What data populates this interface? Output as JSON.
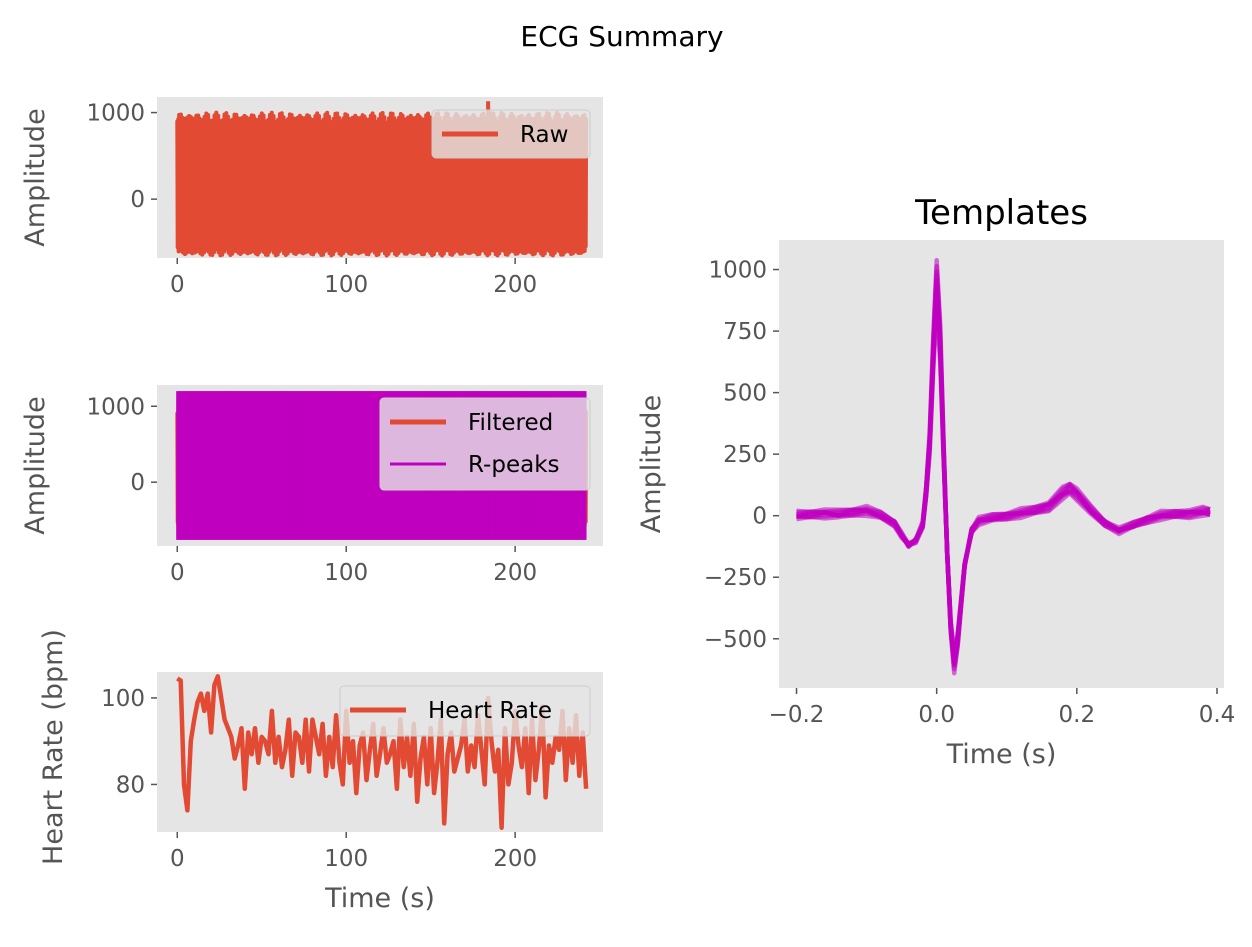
{
  "figure": {
    "suptitle": "ECG Summary"
  },
  "colors": {
    "raw": "#E24A33",
    "filtered": "#E24A33",
    "rpeaks": "#BF00BF",
    "heart_rate": "#E24A33",
    "templates": "#BF00BF",
    "axes_bg": "#E5E5E5"
  },
  "chart_data": [
    {
      "id": "raw",
      "type": "line",
      "title": "",
      "xlabel": "",
      "ylabel": "Amplitude",
      "xlim": [
        -12,
        252
      ],
      "ylim": [
        -680,
        1180
      ],
      "xticks": [
        0,
        100,
        200
      ],
      "yticks": [
        0,
        1000
      ],
      "grid": false,
      "legend_position": "top-right",
      "series": [
        {
          "name": "Raw",
          "kind": "oscillation",
          "x_range": [
            0,
            242
          ],
          "low": -620,
          "high": 980,
          "peak": {
            "x": 184,
            "y": 1130
          }
        }
      ]
    },
    {
      "id": "filtered",
      "type": "line",
      "title": "",
      "xlabel": "",
      "ylabel": "Amplitude",
      "xlim": [
        -12,
        252
      ],
      "ylim": [
        -840,
        1280
      ],
      "xticks": [
        0,
        100,
        200
      ],
      "yticks": [
        0,
        1000
      ],
      "grid": false,
      "legend_position": "top-right",
      "series": [
        {
          "name": "Filtered",
          "kind": "oscillation",
          "x_range": [
            0,
            242
          ],
          "low": -590,
          "high": 990
        },
        {
          "name": "R-peaks",
          "kind": "vlines",
          "x_range": [
            0,
            242
          ],
          "ymin": -760,
          "ymax": 1200
        }
      ]
    },
    {
      "id": "heart_rate",
      "type": "line",
      "title": "",
      "xlabel": "Time (s)",
      "ylabel": "Heart Rate (bpm)",
      "xlim": [
        -12,
        252
      ],
      "ylim": [
        69,
        106
      ],
      "xticks": [
        0,
        100,
        200
      ],
      "yticks": [
        80,
        100
      ],
      "grid": false,
      "legend_position": "top-right",
      "series": [
        {
          "name": "Heart Rate",
          "x": [
            0,
            2,
            4,
            6,
            8,
            10,
            12,
            14,
            16,
            18,
            20,
            22,
            24,
            26,
            28,
            30,
            32,
            34,
            36,
            38,
            40,
            42,
            44,
            46,
            48,
            50,
            52,
            54,
            56,
            58,
            60,
            62,
            64,
            66,
            68,
            70,
            72,
            74,
            76,
            78,
            80,
            82,
            84,
            86,
            88,
            90,
            92,
            94,
            96,
            98,
            100,
            102,
            104,
            106,
            108,
            110,
            112,
            114,
            116,
            118,
            120,
            122,
            124,
            126,
            128,
            130,
            132,
            134,
            136,
            138,
            140,
            142,
            144,
            146,
            148,
            150,
            152,
            154,
            156,
            158,
            160,
            162,
            164,
            166,
            168,
            170,
            172,
            174,
            176,
            178,
            180,
            182,
            184,
            186,
            188,
            190,
            192,
            194,
            196,
            198,
            200,
            202,
            204,
            206,
            208,
            210,
            212,
            214,
            216,
            218,
            220,
            222,
            224,
            226,
            228,
            230,
            232,
            234,
            236,
            238,
            240,
            242
          ],
          "y": [
            104.5,
            104,
            80,
            74,
            90,
            95,
            99,
            101,
            97,
            101,
            92,
            103,
            105,
            100,
            95,
            93,
            91,
            86,
            89,
            93,
            79,
            92,
            87,
            93,
            85,
            91,
            90,
            87,
            97,
            85,
            91,
            84,
            88,
            95,
            82,
            92,
            91,
            85,
            95,
            83,
            95,
            91,
            87,
            94,
            82,
            91,
            84,
            96,
            85,
            80,
            97,
            85,
            90,
            78,
            89,
            92,
            81,
            88,
            94,
            82,
            87,
            93,
            85,
            87,
            90,
            79,
            95,
            84,
            91,
            82,
            94,
            76,
            86,
            91,
            80,
            93,
            78,
            85,
            95,
            71,
            87,
            92,
            83,
            86,
            89,
            95,
            83,
            89,
            84,
            96,
            88,
            80,
            100,
            90,
            83,
            88,
            70,
            93,
            80,
            85,
            97,
            89,
            84,
            93,
            78,
            95,
            81,
            88,
            98,
            77,
            89,
            85,
            91,
            88,
            97,
            81,
            93,
            85,
            96,
            82,
            92,
            79
          ]
        }
      ]
    },
    {
      "id": "templates",
      "type": "line",
      "title": "Templates",
      "xlabel": "Time (s)",
      "ylabel": "Amplitude",
      "xlim": [
        -0.225,
        0.41
      ],
      "ylim": [
        -700,
        1120
      ],
      "xticks": [
        -0.2,
        0.0,
        0.2,
        0.4
      ],
      "xtick_labels": [
        "−0.2",
        "0.0",
        "0.2",
        "0.4"
      ],
      "yticks": [
        -500,
        -250,
        0,
        250,
        500,
        750,
        1000
      ],
      "ytick_labels": [
        "−500",
        "−250",
        "0",
        "250",
        "500",
        "750",
        "1000"
      ],
      "grid": false,
      "series": [
        {
          "name": "",
          "x": [
            -0.2,
            -0.18,
            -0.16,
            -0.14,
            -0.12,
            -0.1,
            -0.08,
            -0.06,
            -0.05,
            -0.04,
            -0.03,
            -0.02,
            -0.015,
            -0.01,
            -0.005,
            0.0,
            0.005,
            0.01,
            0.015,
            0.02,
            0.025,
            0.03,
            0.04,
            0.05,
            0.06,
            0.08,
            0.1,
            0.12,
            0.14,
            0.16,
            0.18,
            0.19,
            0.2,
            0.22,
            0.24,
            0.26,
            0.28,
            0.3,
            0.32,
            0.34,
            0.36,
            0.38,
            0.39
          ],
          "y": [
            0,
            5,
            10,
            5,
            15,
            20,
            0,
            -30,
            -80,
            -120,
            -100,
            -40,
            100,
            300,
            650,
            950,
            700,
            250,
            -150,
            -450,
            -600,
            -500,
            -200,
            -60,
            -20,
            -10,
            0,
            10,
            20,
            40,
            90,
            110,
            90,
            20,
            -30,
            -60,
            -40,
            -15,
            0,
            5,
            10,
            15,
            15
          ]
        }
      ]
    }
  ]
}
